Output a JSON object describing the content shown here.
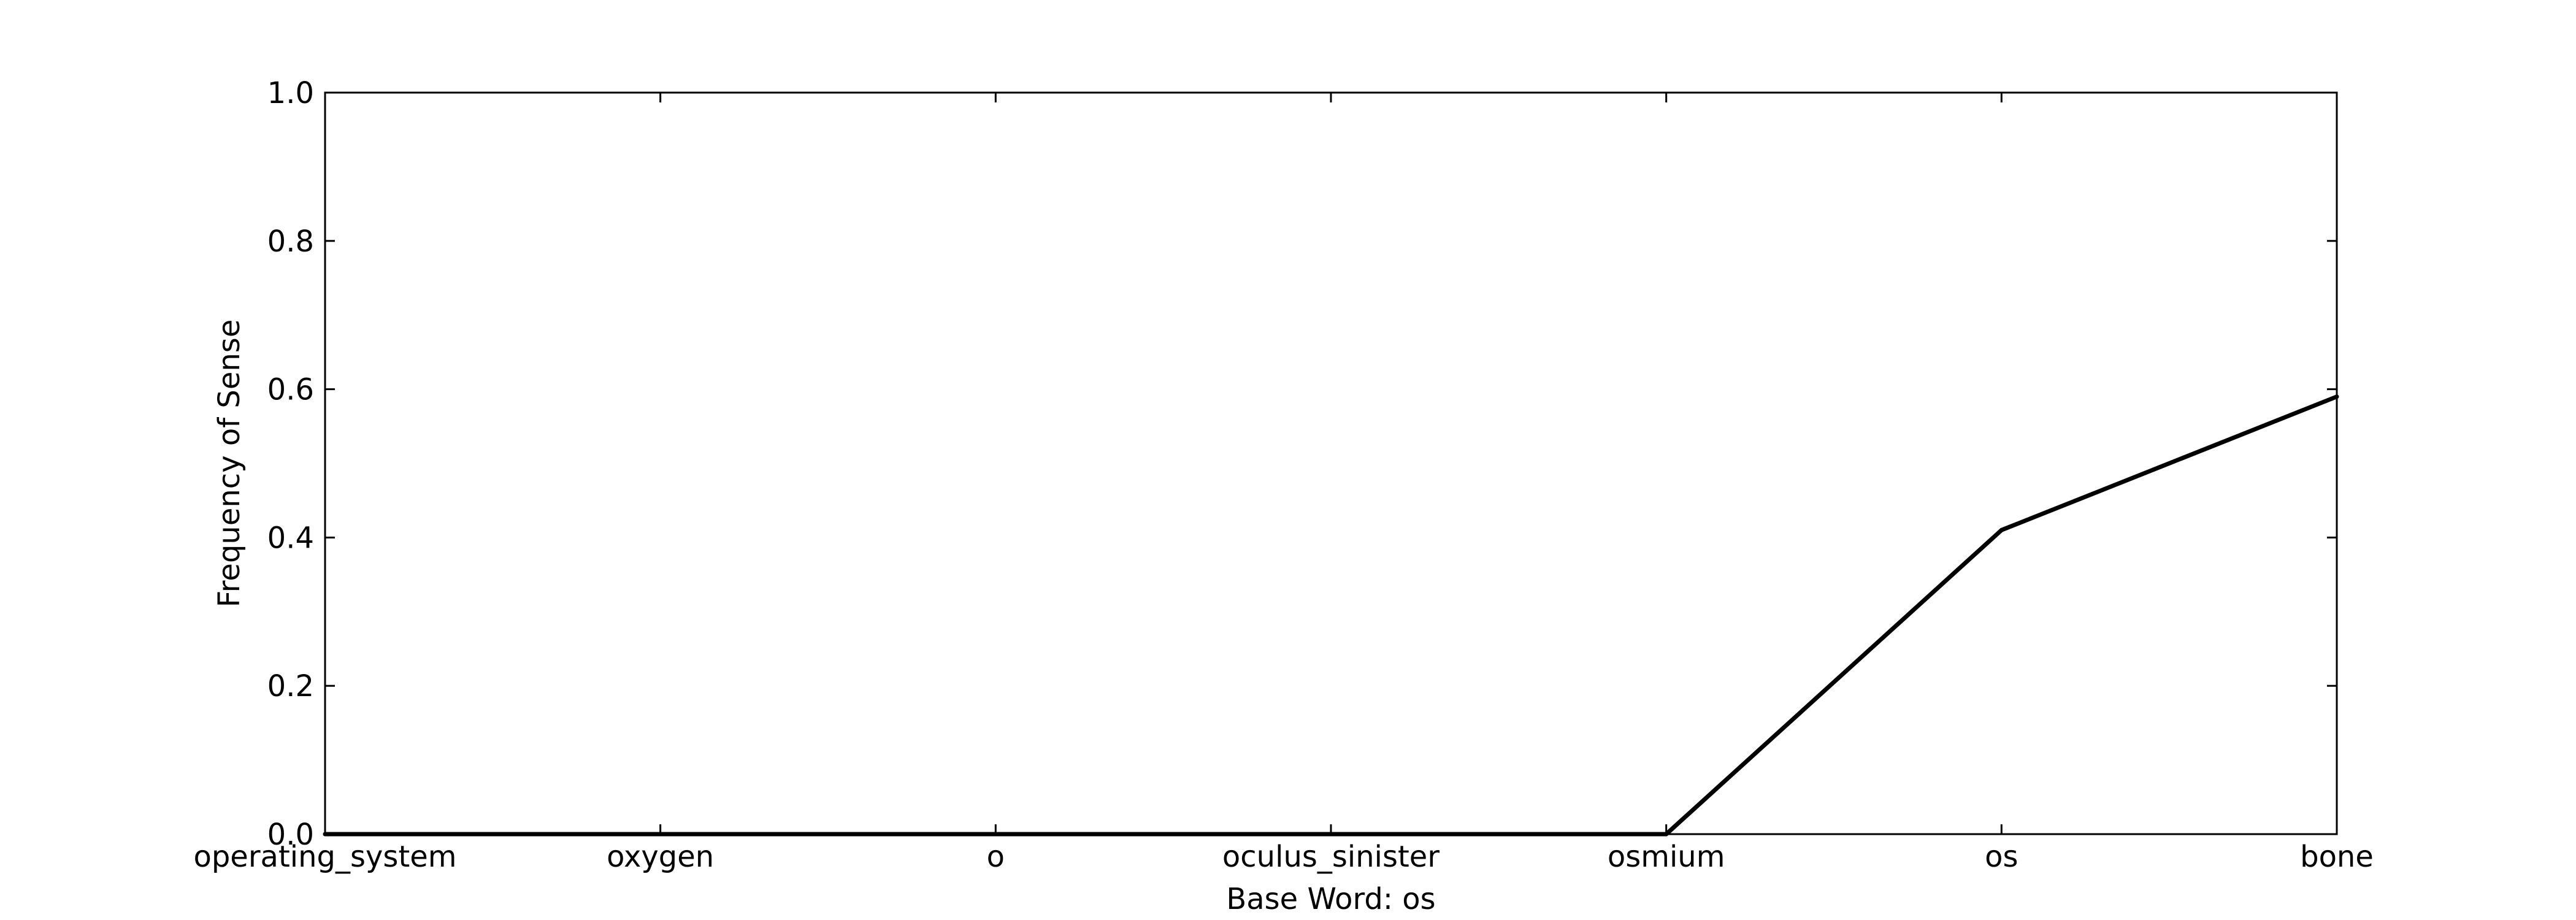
{
  "chart_data": {
    "type": "line",
    "categories": [
      "operating_system",
      "oxygen",
      "o",
      "oculus_sinister",
      "osmium",
      "os",
      "bone"
    ],
    "values": [
      0.0,
      0.0,
      0.0,
      0.0,
      0.0,
      0.41,
      0.59
    ],
    "xlabel": "Base Word: os",
    "ylabel": "Frequency of Sense",
    "ylim": [
      0,
      1.0
    ],
    "yticks": [
      "0.0",
      "0.2",
      "0.4",
      "0.6",
      "0.8",
      "1.0"
    ],
    "grid": false,
    "line_color": "#000000"
  }
}
